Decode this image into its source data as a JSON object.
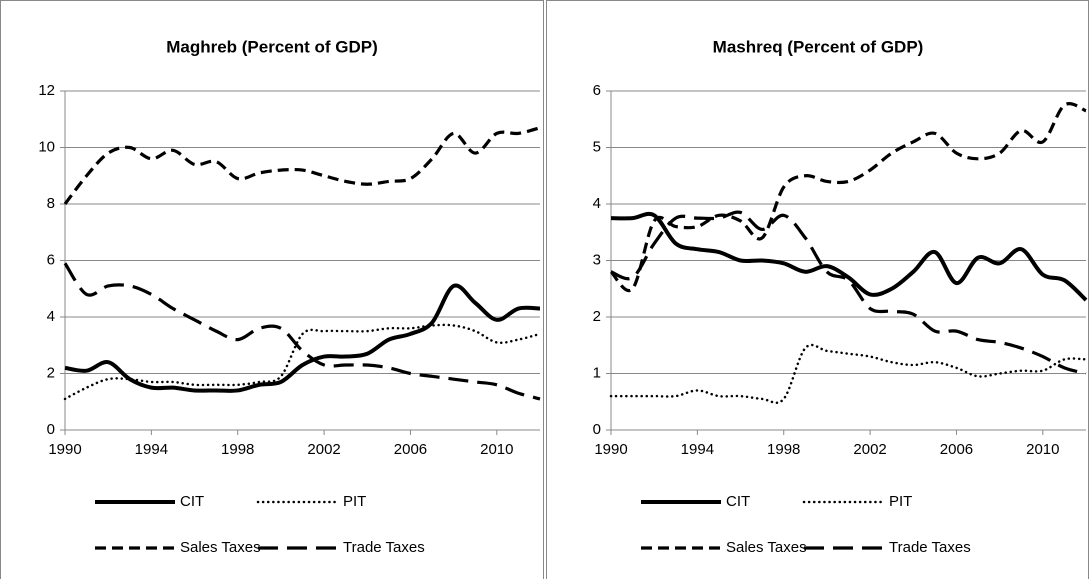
{
  "chart_data": [
    {
      "type": "line",
      "title": "Maghreb (Percent of GDP)",
      "x": [
        1990,
        1991,
        1992,
        1993,
        1994,
        1995,
        1996,
        1997,
        1998,
        1999,
        2000,
        2001,
        2002,
        2003,
        2004,
        2005,
        2006,
        2007,
        2008,
        2009,
        2010,
        2011,
        2012
      ],
      "xlim": [
        1990,
        2012
      ],
      "xticks": [
        1990,
        1994,
        1998,
        2002,
        2006,
        2010
      ],
      "ylim": [
        0,
        12
      ],
      "yticks": [
        0,
        2,
        4,
        6,
        8,
        10,
        12
      ],
      "grid": true,
      "series": [
        {
          "name": "CIT",
          "color": "#000000",
          "dash": "solid",
          "values": [
            2.2,
            2.1,
            2.4,
            1.8,
            1.5,
            1.5,
            1.4,
            1.4,
            1.4,
            1.6,
            1.7,
            2.3,
            2.6,
            2.6,
            2.7,
            3.2,
            3.4,
            3.8,
            5.1,
            4.5,
            3.9,
            4.3,
            4.3
          ]
        },
        {
          "name": "PIT",
          "color": "#000000",
          "dash": "dotted",
          "values": [
            1.1,
            1.5,
            1.8,
            1.8,
            1.7,
            1.7,
            1.6,
            1.6,
            1.6,
            1.7,
            1.9,
            3.4,
            3.5,
            3.5,
            3.5,
            3.6,
            3.6,
            3.7,
            3.7,
            3.5,
            3.1,
            3.2,
            3.4
          ]
        },
        {
          "name": "Sales Taxes",
          "color": "#000000",
          "dash": "dashed",
          "values": [
            8.0,
            9.0,
            9.8,
            10.0,
            9.6,
            9.9,
            9.4,
            9.5,
            8.9,
            9.1,
            9.2,
            9.2,
            9.0,
            8.8,
            8.7,
            8.8,
            8.9,
            9.6,
            10.5,
            9.8,
            10.5,
            10.5,
            10.7
          ]
        },
        {
          "name": "Trade Taxes",
          "color": "#000000",
          "dash": "long-dashed",
          "values": [
            5.9,
            4.8,
            5.1,
            5.1,
            4.8,
            4.3,
            3.9,
            3.5,
            3.2,
            3.6,
            3.6,
            2.8,
            2.3,
            2.3,
            2.3,
            2.2,
            2.0,
            1.9,
            1.8,
            1.7,
            1.6,
            1.3,
            1.1
          ]
        }
      ]
    },
    {
      "type": "line",
      "title": "Mashreq (Percent of GDP)",
      "x": [
        1990,
        1991,
        1992,
        1993,
        1994,
        1995,
        1996,
        1997,
        1998,
        1999,
        2000,
        2001,
        2002,
        2003,
        2004,
        2005,
        2006,
        2007,
        2008,
        2009,
        2010,
        2011,
        2012
      ],
      "xlim": [
        1990,
        2012
      ],
      "xticks": [
        1990,
        1994,
        1998,
        2002,
        2006,
        2010
      ],
      "ylim": [
        0,
        6
      ],
      "yticks": [
        0,
        1,
        2,
        3,
        4,
        5,
        6
      ],
      "grid": true,
      "series": [
        {
          "name": "CIT",
          "color": "#000000",
          "dash": "solid",
          "values": [
            3.75,
            3.75,
            3.8,
            3.3,
            3.2,
            3.15,
            3.0,
            3.0,
            2.95,
            2.8,
            2.9,
            2.7,
            2.4,
            2.5,
            2.8,
            3.15,
            2.6,
            3.05,
            2.95,
            3.2,
            2.75,
            2.65,
            2.3
          ]
        },
        {
          "name": "PIT",
          "color": "#000000",
          "dash": "dotted",
          "values": [
            0.6,
            0.6,
            0.6,
            0.6,
            0.7,
            0.6,
            0.6,
            0.55,
            0.55,
            1.45,
            1.4,
            1.35,
            1.3,
            1.2,
            1.15,
            1.2,
            1.1,
            0.95,
            1.0,
            1.05,
            1.05,
            1.25,
            1.25
          ]
        },
        {
          "name": "Sales Taxes",
          "color": "#000000",
          "dash": "dashed",
          "values": [
            2.8,
            2.5,
            3.7,
            3.6,
            3.6,
            3.8,
            3.7,
            3.4,
            4.3,
            4.5,
            4.4,
            4.4,
            4.6,
            4.9,
            5.1,
            5.25,
            4.9,
            4.8,
            4.9,
            5.3,
            5.1,
            5.75,
            5.65
          ]
        },
        {
          "name": "Trade Taxes",
          "color": "#000000",
          "dash": "long-dashed",
          "values": [
            2.8,
            2.7,
            3.3,
            3.75,
            3.75,
            3.75,
            3.85,
            3.55,
            3.8,
            3.4,
            2.8,
            2.65,
            2.15,
            2.1,
            2.05,
            1.75,
            1.75,
            1.6,
            1.55,
            1.45,
            1.3,
            1.1,
            1.0
          ]
        }
      ]
    }
  ]
}
